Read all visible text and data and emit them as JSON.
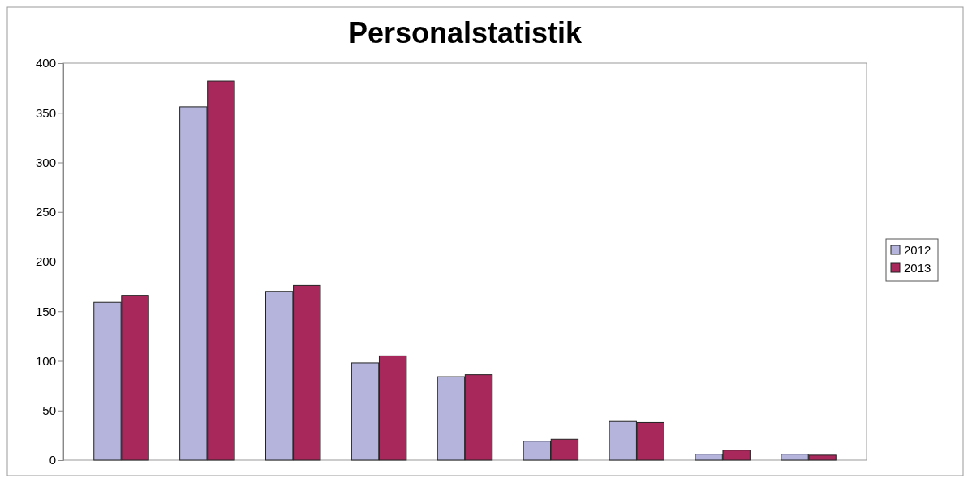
{
  "chart_data": {
    "type": "bar",
    "title": "Personalstatistik",
    "categories": [
      null,
      null,
      null,
      null,
      null,
      null,
      null,
      null,
      null
    ],
    "series": [
      {
        "name": "2012",
        "color": "#b4b4dc",
        "values": [
          159,
          356,
          170,
          98,
          84,
          19,
          39,
          6,
          6
        ]
      },
      {
        "name": "2013",
        "color": "#a8285c",
        "values": [
          166,
          382,
          176,
          105,
          86,
          21,
          38,
          10,
          5
        ]
      }
    ],
    "ylim": [
      0,
      400
    ],
    "yticks": [
      0,
      50,
      100,
      150,
      200,
      250,
      300,
      350,
      400
    ],
    "grid": false,
    "legend": "right"
  }
}
